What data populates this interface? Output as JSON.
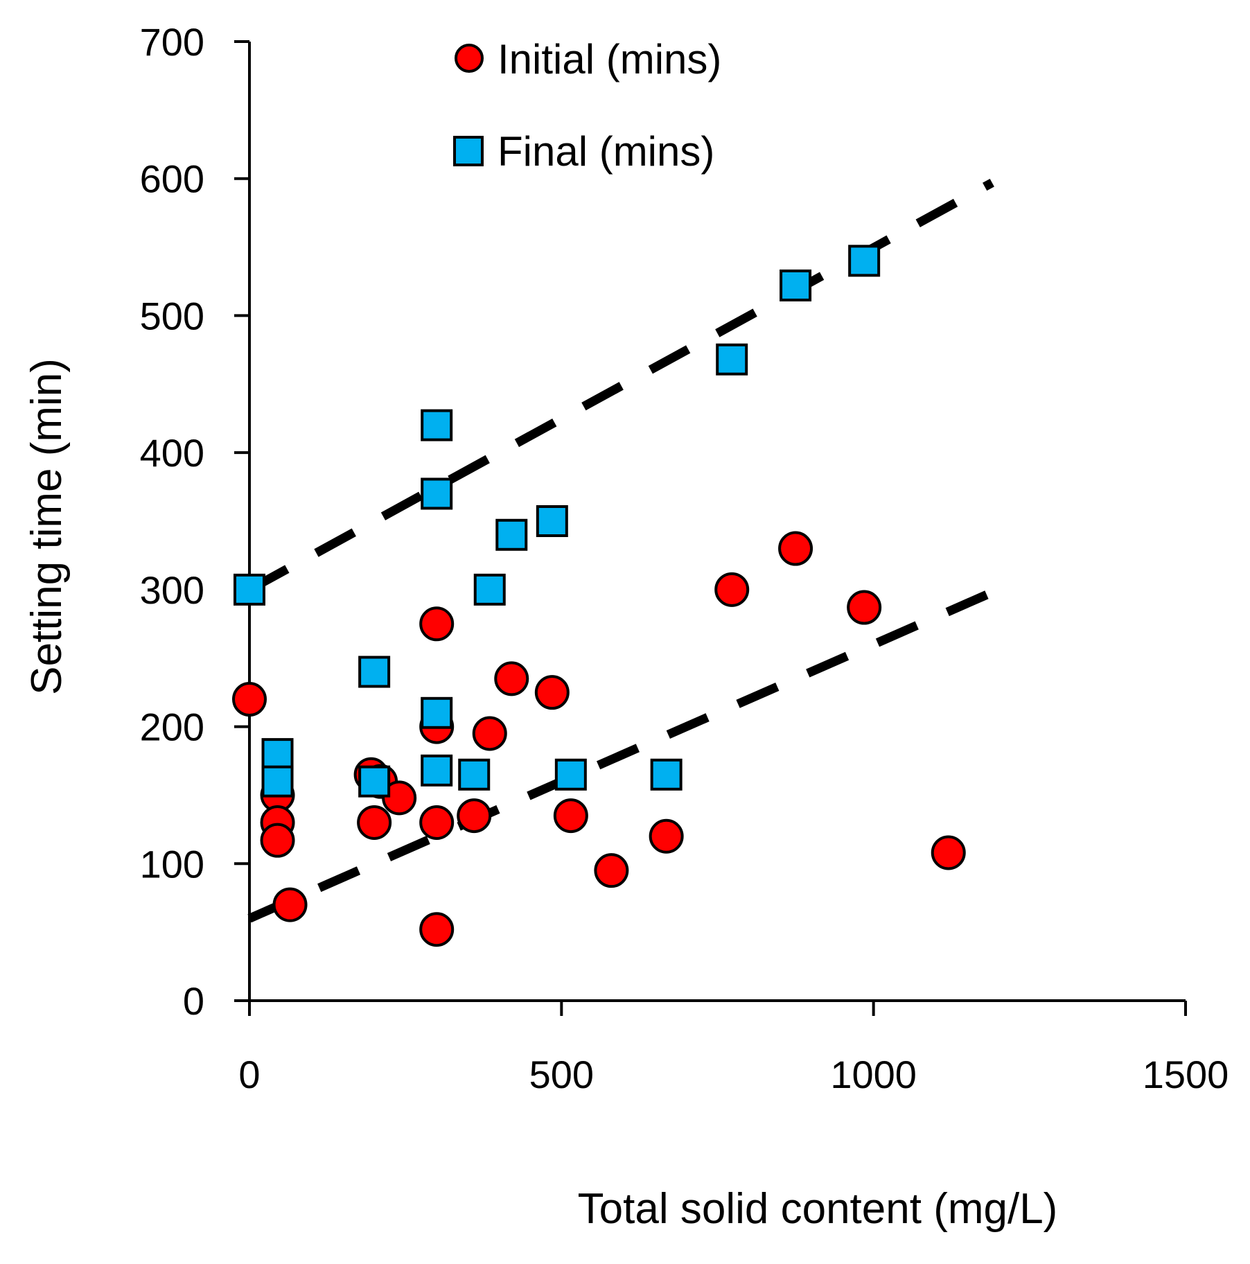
{
  "chart_data": {
    "type": "scatter",
    "xlabel": "Total solid content (mg/L)",
    "ylabel": "Setting time (min)",
    "xlim": [
      0,
      1500
    ],
    "ylim": [
      0,
      700
    ],
    "x_ticks": [
      "0",
      "500",
      "1000",
      "1500"
    ],
    "y_ticks": [
      "0",
      "100",
      "200",
      "300",
      "400",
      "500",
      "600",
      "700"
    ],
    "grid": false,
    "legend_position": "top-center",
    "series": [
      {
        "name": "Initial (mins)",
        "marker": "circle",
        "color": "#ff0000",
        "edge_color": "#000000",
        "points": [
          {
            "x": 0,
            "y": 220
          },
          {
            "x": 45,
            "y": 150
          },
          {
            "x": 45,
            "y": 130
          },
          {
            "x": 45,
            "y": 117
          },
          {
            "x": 65,
            "y": 70
          },
          {
            "x": 195,
            "y": 165
          },
          {
            "x": 210,
            "y": 160
          },
          {
            "x": 240,
            "y": 148
          },
          {
            "x": 200,
            "y": 130
          },
          {
            "x": 300,
            "y": 275
          },
          {
            "x": 300,
            "y": 200
          },
          {
            "x": 300,
            "y": 130
          },
          {
            "x": 300,
            "y": 52
          },
          {
            "x": 360,
            "y": 135
          },
          {
            "x": 385,
            "y": 195
          },
          {
            "x": 420,
            "y": 235
          },
          {
            "x": 485,
            "y": 225
          },
          {
            "x": 515,
            "y": 135
          },
          {
            "x": 580,
            "y": 95
          },
          {
            "x": 668,
            "y": 120
          },
          {
            "x": 773,
            "y": 300
          },
          {
            "x": 875,
            "y": 330
          },
          {
            "x": 985,
            "y": 287
          },
          {
            "x": 1120,
            "y": 108
          }
        ]
      },
      {
        "name": "Final (mins)",
        "marker": "square",
        "color": "#00b0f0",
        "edge_color": "#000000",
        "points": [
          {
            "x": 0,
            "y": 300
          },
          {
            "x": 45,
            "y": 180
          },
          {
            "x": 45,
            "y": 160
          },
          {
            "x": 200,
            "y": 240
          },
          {
            "x": 200,
            "y": 160
          },
          {
            "x": 300,
            "y": 420
          },
          {
            "x": 300,
            "y": 370
          },
          {
            "x": 300,
            "y": 210
          },
          {
            "x": 300,
            "y": 168
          },
          {
            "x": 360,
            "y": 165
          },
          {
            "x": 385,
            "y": 300
          },
          {
            "x": 420,
            "y": 340
          },
          {
            "x": 485,
            "y": 350
          },
          {
            "x": 515,
            "y": 165
          },
          {
            "x": 668,
            "y": 165
          },
          {
            "x": 773,
            "y": 468
          },
          {
            "x": 875,
            "y": 522
          },
          {
            "x": 985,
            "y": 540
          }
        ]
      }
    ],
    "trendlines": [
      {
        "name": "initial-trend",
        "style": "dashed",
        "color": "#000000",
        "x": [
          0,
          1200
        ],
        "y": [
          60,
          300
        ]
      },
      {
        "name": "final-trend",
        "style": "dashed",
        "color": "#000000",
        "x": [
          0,
          1190
        ],
        "y": [
          300,
          597
        ]
      }
    ]
  }
}
